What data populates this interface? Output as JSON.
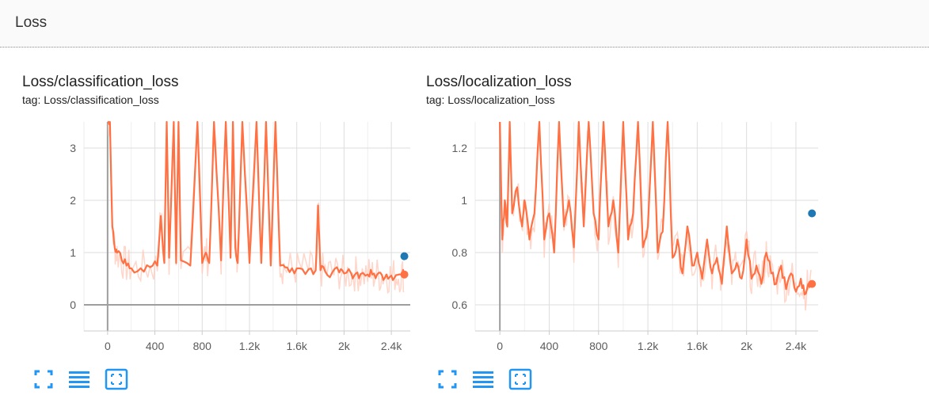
{
  "section": {
    "title": "Loss"
  },
  "cards": [
    {
      "title": "Loss/classification_loss",
      "tag": "tag: Loss/classification_loss"
    },
    {
      "title": "Loss/localization_loss",
      "tag": "tag: Loss/localization_loss"
    }
  ],
  "toolbar": {
    "icons": [
      "fullscreen-icon",
      "toggle-log-scale-icon",
      "fit-domain-icon"
    ]
  },
  "colors": {
    "smoothed": "#ff7043",
    "raw": "#ffccbc",
    "marker": "#1f77b4",
    "icon": "#2196f3"
  },
  "chart_data": [
    {
      "type": "line",
      "title": "Loss/classification_loss",
      "subtitle": "tag: Loss/classification_loss",
      "x_ticks": [
        "0",
        "400",
        "800",
        "1.2k",
        "1.6k",
        "2k",
        "2.4k"
      ],
      "x_tick_values": [
        0,
        400,
        800,
        1200,
        1600,
        2000,
        2400
      ],
      "y_ticks": [
        "0",
        "1",
        "2",
        "3"
      ],
      "y_tick_values": [
        0,
        1,
        2,
        3
      ],
      "xlim": [
        -200,
        2560
      ],
      "ylim": [
        -0.5,
        3.5
      ],
      "grid": true,
      "series": [
        {
          "x": [
            0,
            20,
            40,
            60,
            80,
            120,
            160,
            200,
            280,
            360,
            420,
            450,
            480,
            500,
            520,
            560,
            580,
            600,
            620,
            700,
            760,
            800,
            830,
            860,
            900,
            960,
            1000,
            1040,
            1060,
            1080,
            1100,
            1140,
            1200,
            1260,
            1300,
            1340,
            1380,
            1420,
            1460,
            1500,
            1560,
            1620,
            1700,
            1760,
            1780,
            1800,
            1840,
            1900,
            1960,
            2000,
            2060,
            2100,
            2140,
            2200,
            2240,
            2280,
            2320,
            2360,
            2400,
            2440,
            2480,
            2510
          ],
          "y": [
            3.5,
            3.5,
            1.5,
            1.1,
            1.0,
            0.85,
            0.75,
            0.7,
            0.7,
            0.72,
            0.75,
            1.7,
            0.8,
            3.5,
            0.9,
            3.5,
            0.8,
            3.5,
            0.85,
            0.75,
            3.5,
            0.8,
            1.0,
            0.8,
            3.5,
            0.85,
            3.5,
            0.9,
            3.5,
            1.1,
            0.8,
            3.5,
            0.8,
            3.5,
            0.8,
            3.5,
            0.75,
            3.5,
            0.75,
            0.72,
            0.7,
            0.7,
            0.68,
            0.66,
            1.9,
            0.66,
            0.64,
            0.62,
            0.62,
            0.6,
            0.6,
            0.6,
            0.59,
            0.58,
            0.58,
            0.58,
            0.57,
            0.58,
            0.56,
            0.57,
            0.58,
            0.58
          ]
        }
      ],
      "last_raw_point": {
        "x": 2510,
        "y": 0.93
      }
    },
    {
      "type": "line",
      "title": "Loss/localization_loss",
      "subtitle": "tag: Loss/localization_loss",
      "x_ticks": [
        "0",
        "400",
        "800",
        "1.2k",
        "1.6k",
        "2k",
        "2.4k"
      ],
      "x_tick_values": [
        0,
        400,
        800,
        1200,
        1600,
        2000,
        2400
      ],
      "y_ticks": [
        "0.6",
        "0.8",
        "1",
        "1.2"
      ],
      "y_tick_values": [
        0.6,
        0.8,
        1.0,
        1.2
      ],
      "xlim": [
        -200,
        2580
      ],
      "ylim": [
        0.5,
        1.3
      ],
      "grid": true,
      "series": [
        {
          "x": [
            0,
            20,
            40,
            60,
            80,
            100,
            140,
            180,
            200,
            240,
            280,
            320,
            360,
            400,
            440,
            480,
            520,
            560,
            600,
            640,
            680,
            720,
            760,
            800,
            840,
            880,
            920,
            960,
            1000,
            1040,
            1080,
            1120,
            1160,
            1200,
            1240,
            1280,
            1320,
            1360,
            1400,
            1440,
            1480,
            1520,
            1560,
            1600,
            1640,
            1680,
            1720,
            1760,
            1800,
            1840,
            1880,
            1920,
            1960,
            2000,
            2040,
            2080,
            2120,
            2160,
            2200,
            2240,
            2280,
            2320,
            2360,
            2400,
            2440,
            2470,
            2500,
            2530
          ],
          "y": [
            1.3,
            0.85,
            1.0,
            0.9,
            1.3,
            0.95,
            1.05,
            0.9,
            1.0,
            0.85,
            0.95,
            1.3,
            0.85,
            0.95,
            0.8,
            1.3,
            0.9,
            1.0,
            0.82,
            1.3,
            0.9,
            1.3,
            0.95,
            0.85,
            1.3,
            0.9,
            1.0,
            0.8,
            1.3,
            0.85,
            0.95,
            1.3,
            0.82,
            0.9,
            1.3,
            0.8,
            0.88,
            1.3,
            0.78,
            0.85,
            0.72,
            0.9,
            0.75,
            0.8,
            0.7,
            0.85,
            0.72,
            0.78,
            0.68,
            0.9,
            0.72,
            0.76,
            0.7,
            0.85,
            0.7,
            0.75,
            0.68,
            0.8,
            0.72,
            0.68,
            0.75,
            0.66,
            0.72,
            0.65,
            0.7,
            0.64,
            0.68,
            0.68
          ]
        }
      ],
      "last_raw_point": {
        "x": 2530,
        "y": 0.95
      }
    }
  ]
}
